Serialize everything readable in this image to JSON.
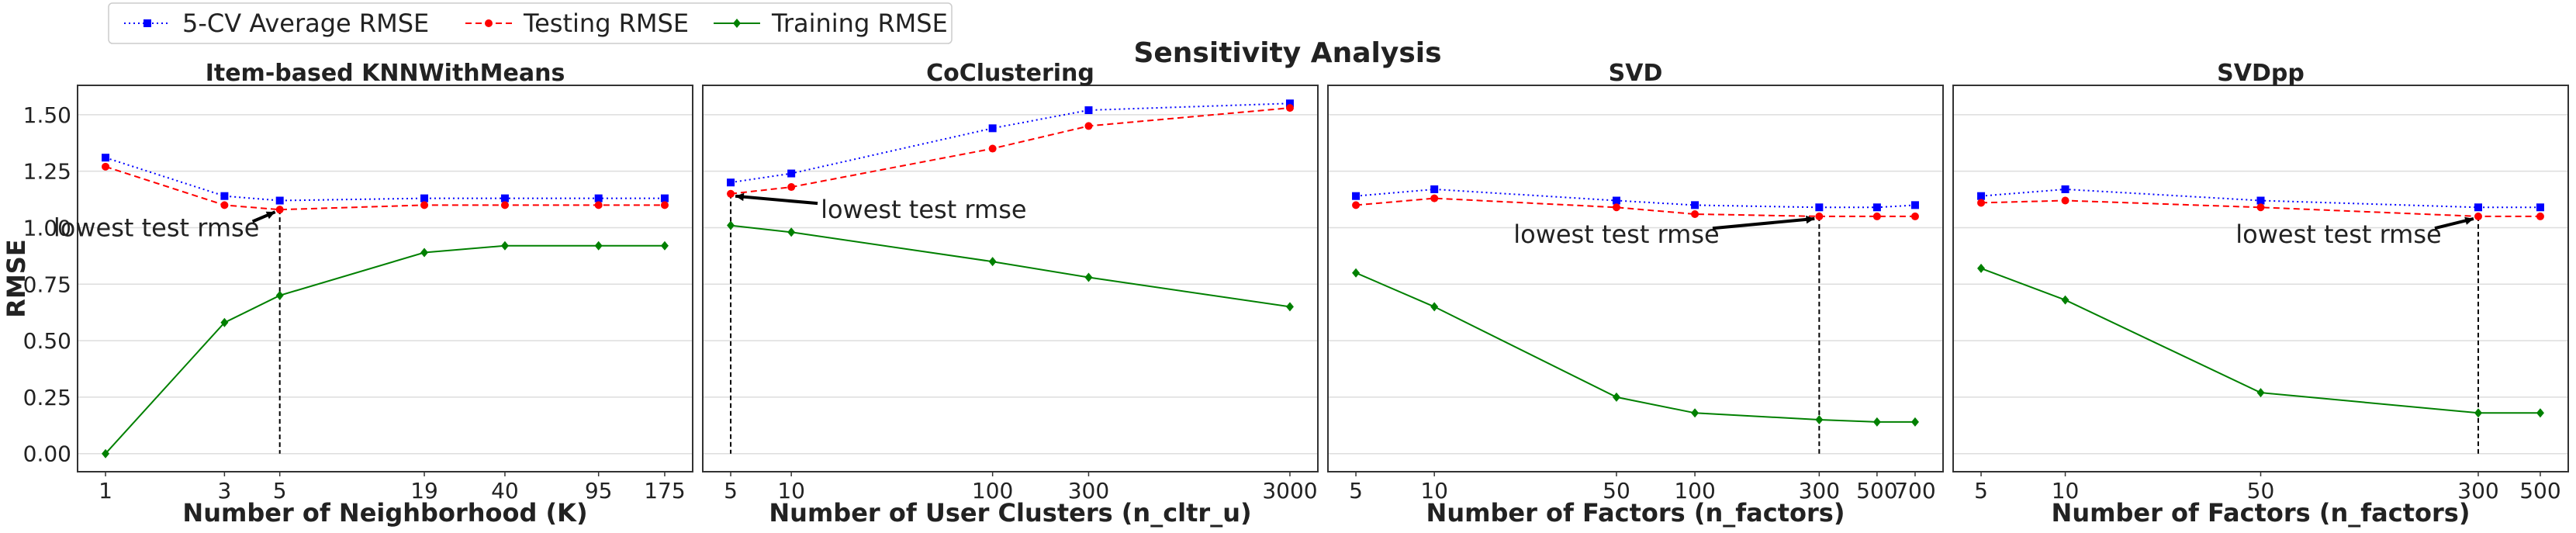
{
  "suptitle": "Sensitivity Analysis",
  "legend": {
    "placement": "top-left",
    "entries": [
      {
        "key": "cv",
        "label": "5-CV Average RMSE",
        "color": "#0000ff",
        "marker": "square",
        "line": "dotted"
      },
      {
        "key": "test",
        "label": "Testing RMSE",
        "color": "#ff0000",
        "marker": "circle",
        "line": "dashed"
      },
      {
        "key": "train",
        "label": "Training RMSE",
        "color": "#008000",
        "marker": "diamond",
        "line": "solid"
      }
    ]
  },
  "chart_data": [
    {
      "type": "line",
      "title": "Item-based KNNWithMeans",
      "xlabel": "Number of Neighborhood (K)",
      "ylabel": "RMSE",
      "x_scale": "log",
      "x": [
        1,
        3,
        5,
        19,
        40,
        95,
        175
      ],
      "x_ticks": [
        "1",
        "3",
        "5",
        "19",
        "40",
        "95",
        "175"
      ],
      "ylim": [
        -0.08,
        1.63
      ],
      "y_ticks": [
        "0.00",
        "0.25",
        "0.50",
        "0.75",
        "1.00",
        "1.25",
        "1.50"
      ],
      "grid": "horizontal",
      "series": [
        {
          "key": "cv",
          "values": [
            1.31,
            1.14,
            1.12,
            1.13,
            1.13,
            1.13,
            1.13
          ]
        },
        {
          "key": "test",
          "values": [
            1.27,
            1.1,
            1.08,
            1.1,
            1.1,
            1.1,
            1.1
          ]
        },
        {
          "key": "train",
          "values": [
            0.0,
            0.58,
            0.7,
            0.89,
            0.92,
            0.92,
            0.92
          ]
        }
      ],
      "annotation": {
        "text": "lowest test rmse",
        "x": 5,
        "y": 1.08,
        "text_pos": [
          1.6,
          1.0
        ]
      }
    },
    {
      "type": "line",
      "title": "CoClustering",
      "xlabel": "Number of User Clusters (n_cltr_u)",
      "ylabel": "",
      "x_scale": "log",
      "x": [
        5,
        10,
        100,
        300,
        3000
      ],
      "x_ticks": [
        "5",
        "10",
        "100",
        "300",
        "3000"
      ],
      "ylim": [
        -0.08,
        1.63
      ],
      "y_ticks": [],
      "grid": "horizontal",
      "series": [
        {
          "key": "cv",
          "values": [
            1.2,
            1.24,
            1.44,
            1.52,
            1.55
          ]
        },
        {
          "key": "test",
          "values": [
            1.15,
            1.18,
            1.35,
            1.45,
            1.53
          ]
        },
        {
          "key": "train",
          "values": [
            1.01,
            0.98,
            0.85,
            0.78,
            0.65
          ]
        }
      ],
      "annotation": {
        "text": "lowest test rmse",
        "x": 5,
        "y": 1.15,
        "text_pos": [
          14,
          1.08
        ]
      }
    },
    {
      "type": "line",
      "title": "SVD",
      "xlabel": "Number of Factors (n_factors)",
      "ylabel": "",
      "x_scale": "log",
      "x": [
        5,
        10,
        50,
        100,
        300,
        500,
        700
      ],
      "x_ticks": [
        "5",
        "10",
        "50",
        "100",
        "300",
        "500",
        "700"
      ],
      "ylim": [
        -0.08,
        1.63
      ],
      "y_ticks": [],
      "grid": "horizontal",
      "series": [
        {
          "key": "cv",
          "values": [
            1.14,
            1.17,
            1.12,
            1.1,
            1.09,
            1.09,
            1.1
          ]
        },
        {
          "key": "test",
          "values": [
            1.1,
            1.13,
            1.09,
            1.06,
            1.05,
            1.05,
            1.05
          ]
        },
        {
          "key": "train",
          "values": [
            0.8,
            0.65,
            0.25,
            0.18,
            0.15,
            0.14,
            0.14
          ]
        }
      ],
      "annotation": {
        "text": "lowest test rmse",
        "x": 300,
        "y": 1.05,
        "text_pos": [
          50,
          0.97
        ]
      }
    },
    {
      "type": "line",
      "title": "SVDpp",
      "xlabel": "Number of Factors (n_factors)",
      "ylabel": "",
      "x_scale": "log",
      "x": [
        5,
        10,
        50,
        300,
        500
      ],
      "x_ticks": [
        "5",
        "10",
        "50",
        "300",
        "500"
      ],
      "ylim": [
        -0.08,
        1.63
      ],
      "y_ticks": [],
      "grid": "horizontal",
      "series": [
        {
          "key": "cv",
          "values": [
            1.14,
            1.17,
            1.12,
            1.09,
            1.09
          ]
        },
        {
          "key": "test",
          "values": [
            1.11,
            1.12,
            1.09,
            1.05,
            1.05
          ]
        },
        {
          "key": "train",
          "values": [
            0.82,
            0.68,
            0.27,
            0.18,
            0.18
          ]
        }
      ],
      "annotation": {
        "text": "lowest test rmse",
        "x": 300,
        "y": 1.05,
        "text_pos": [
          95,
          0.97
        ]
      }
    }
  ]
}
